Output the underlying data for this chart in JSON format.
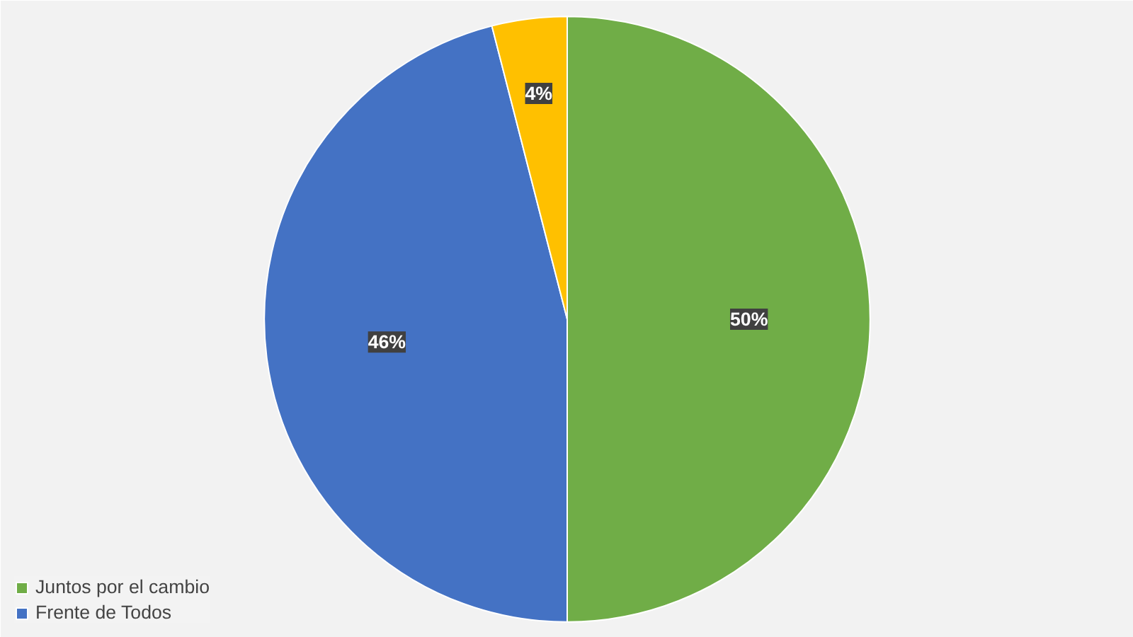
{
  "chart_data": {
    "type": "pie",
    "categories": [
      "Juntos por el cambio",
      "Frente de Todos",
      null
    ],
    "values": [
      50,
      46,
      4
    ],
    "colors": [
      "#70ad47",
      "#4472c4",
      "#ffc000"
    ],
    "value_labels": [
      "50%",
      "46%",
      "4%"
    ],
    "legend": "bottom left"
  }
}
